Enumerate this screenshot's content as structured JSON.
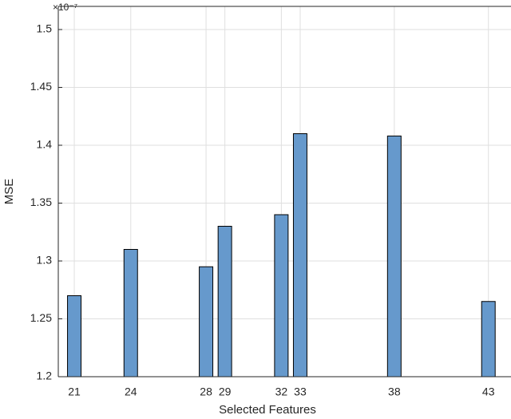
{
  "chart_data": {
    "type": "bar",
    "x_label": "Selected Features",
    "y_label": "MSE",
    "y_multiplier": "×10⁻⁷",
    "x": [
      21,
      24,
      28,
      29,
      32,
      33,
      38,
      43
    ],
    "values": [
      1.27,
      1.31,
      1.295,
      1.33,
      1.34,
      1.41,
      1.408,
      1.265
    ],
    "color": "#6699cc",
    "xlim": [
      20.15,
      44.2
    ],
    "xticks": [
      21,
      24,
      28,
      29,
      32,
      33,
      38,
      43
    ],
    "ylim": [
      1.2,
      1.52
    ],
    "yticks": [
      1.2,
      1.25,
      1.3,
      1.35,
      1.4,
      1.45,
      1.5
    ],
    "grid": true
  }
}
